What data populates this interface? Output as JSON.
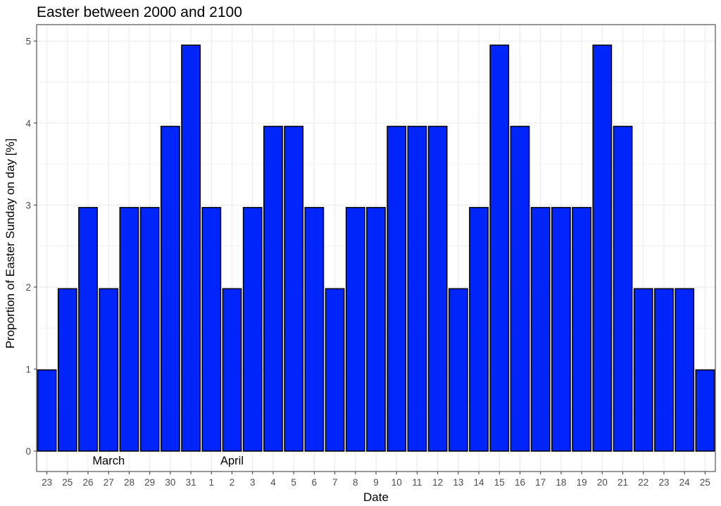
{
  "chart_data": {
    "type": "bar",
    "title": "Easter between 2000 and 2100",
    "xlabel": "Date",
    "ylabel": "Proportion of Easter Sunday on day [%]",
    "categories": [
      "23",
      "25",
      "26",
      "27",
      "28",
      "29",
      "30",
      "31",
      "1",
      "2",
      "3",
      "4",
      "5",
      "6",
      "7",
      "8",
      "9",
      "10",
      "11",
      "12",
      "13",
      "14",
      "15",
      "16",
      "17",
      "18",
      "19",
      "20",
      "21",
      "22",
      "23",
      "24",
      "25"
    ],
    "values": [
      0.99,
      1.98,
      2.97,
      1.98,
      2.97,
      2.97,
      3.96,
      4.95,
      2.97,
      1.98,
      2.97,
      3.96,
      3.96,
      2.97,
      1.98,
      2.97,
      2.97,
      3.96,
      3.96,
      3.96,
      1.98,
      2.97,
      4.95,
      3.96,
      2.97,
      2.97,
      2.97,
      4.95,
      3.96,
      1.98,
      1.98,
      1.98,
      0.99
    ],
    "ylim": [
      0,
      5.2
    ],
    "yticks": [
      "0",
      "1",
      "2",
      "3",
      "4",
      "5"
    ],
    "grid": true,
    "annotations": [
      {
        "text": "March",
        "category_index": 3
      },
      {
        "text": "April",
        "category_index": 9
      }
    ],
    "colors": {
      "bar_fill": "#0025fb",
      "bar_stroke": "#000000",
      "grid": "#ebebeb",
      "panel_border": "#333333"
    }
  }
}
